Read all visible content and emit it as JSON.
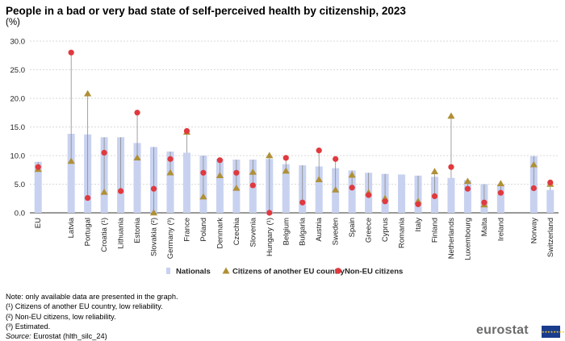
{
  "title": "People in a bad or very bad state of self-perceived health by citizenship, 2023",
  "unit": "(%)",
  "chart_data": {
    "type": "bar",
    "ylim": [
      0,
      30
    ],
    "yticks": [
      "0.0",
      "5.0",
      "10.0",
      "15.0",
      "20.0",
      "25.0",
      "30.0"
    ],
    "grid": true,
    "legend_position": "bottom",
    "categories": [
      "EU",
      "Latvia",
      "Portugal",
      "Croatia (¹)",
      "Lithuania",
      "Estonia",
      "Slovakia (²)",
      "Germany (³)",
      "France",
      "Poland",
      "Denmark",
      "Czechia",
      "Slovenia",
      "Hungary (¹)",
      "Belgium",
      "Bulgaria",
      "Austria",
      "Sweden",
      "Spain",
      "Greece",
      "Cyprus",
      "Romania",
      "Italy",
      "Finland",
      "Netherlands",
      "Luxembourg",
      "Malta",
      "Ireland",
      "Norway",
      "Switzerland"
    ],
    "gap_after": [
      "EU",
      "Ireland"
    ],
    "series": [
      {
        "name": "Nationals",
        "marker": "bar",
        "color": "#c8d2f0",
        "values": [
          8.9,
          13.8,
          13.7,
          13.2,
          13.2,
          12.2,
          11.5,
          10.7,
          10.5,
          10.0,
          9.4,
          9.3,
          9.3,
          9.4,
          8.5,
          8.3,
          8.1,
          7.8,
          7.4,
          7.0,
          6.8,
          6.7,
          6.5,
          6.3,
          6.1,
          5.7,
          5.0,
          5.0,
          9.9,
          4.0
        ]
      },
      {
        "name": "Citizens of another EU country",
        "marker": "triangle",
        "color": "#b09036",
        "values": [
          7.6,
          9.0,
          20.8,
          3.6,
          null,
          9.6,
          0.0,
          7.0,
          14.1,
          2.8,
          6.5,
          4.3,
          7.1,
          10.0,
          7.3,
          null,
          5.8,
          4.0,
          6.6,
          3.5,
          2.5,
          null,
          2.0,
          7.2,
          16.9,
          5.5,
          1.4,
          5.1,
          8.4,
          5.0
        ]
      },
      {
        "name": "Non-EU citizens",
        "marker": "circle",
        "color": "#e0393e",
        "values": [
          8.0,
          28.0,
          2.6,
          10.5,
          3.8,
          17.5,
          4.2,
          9.4,
          14.3,
          7.0,
          9.2,
          7.0,
          4.8,
          0.0,
          9.6,
          1.8,
          10.9,
          9.4,
          4.4,
          3.1,
          2.0,
          null,
          1.5,
          2.9,
          8.0,
          4.2,
          1.8,
          3.5,
          4.3,
          5.3
        ]
      }
    ]
  },
  "notes": {
    "line1": "Note: only available data are presented in the graph.",
    "line2": "(¹) Citizens of another EU country, low reliability.",
    "line3": "(²) Non-EU citizens, low reliability.",
    "line4": "(³) Estimated.",
    "source_label": "Source:",
    "source_text": " Eurostat (hlth_silc_24)"
  },
  "logo": {
    "text": "eurostat",
    "flag_stars": "★★★★★★★★★★★★"
  }
}
